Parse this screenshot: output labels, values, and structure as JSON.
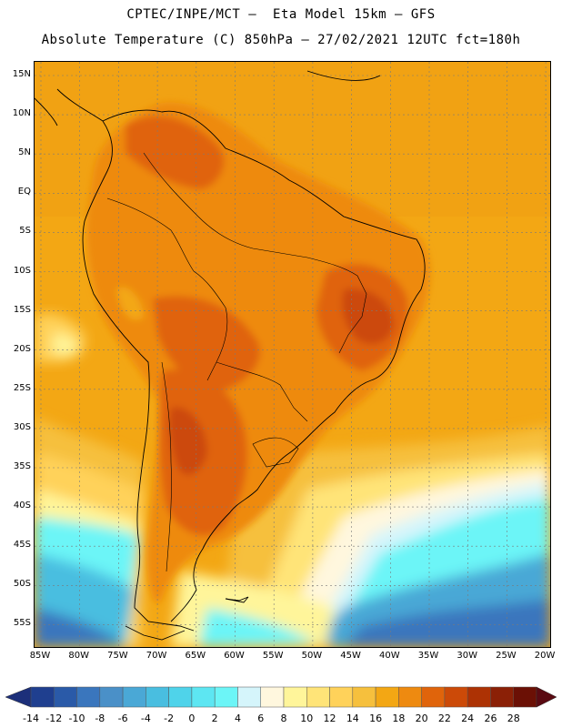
{
  "header": {
    "line1": "CPTEC/INPE/MCT –  Eta Model 15km – GFS",
    "line2": "Absolute Temperature (C) 850hPa – 27/02/2021 12UTC fct=180h"
  },
  "map": {
    "lat_labels": [
      "15N",
      "10N",
      "5N",
      "EQ",
      "5S",
      "10S",
      "15S",
      "20S",
      "25S",
      "30S",
      "35S",
      "40S",
      "45S",
      "50S",
      "55S"
    ],
    "lon_labels": [
      "85W",
      "80W",
      "75W",
      "70W",
      "65W",
      "60W",
      "55W",
      "50W",
      "45W",
      "40W",
      "35W",
      "30W",
      "25W",
      "20W"
    ]
  },
  "colorbar": {
    "labels": [
      "-14",
      "-12",
      "-10",
      "-8",
      "-6",
      "-4",
      "-2",
      "0",
      "2",
      "4",
      "6",
      "8",
      "10",
      "12",
      "14",
      "16",
      "18",
      "20",
      "22",
      "24",
      "26",
      "28"
    ],
    "colors": [
      "#1f3f8f",
      "#2a5aa8",
      "#3a76bd",
      "#4a90c8",
      "#4aa8d6",
      "#49bee0",
      "#4fd3ea",
      "#5de6f2",
      "#6cf5f7",
      "#d5f5fb",
      "#fff7de",
      "#fff59a",
      "#ffe478",
      "#ffd25a",
      "#f6c03d",
      "#f3a714",
      "#ee8a10",
      "#e0640b",
      "#cc4a08",
      "#ad3204",
      "#8b2006",
      "#6b1005"
    ],
    "left_end_color": "#1c2f7a",
    "right_end_color": "#5a0a12"
  }
}
